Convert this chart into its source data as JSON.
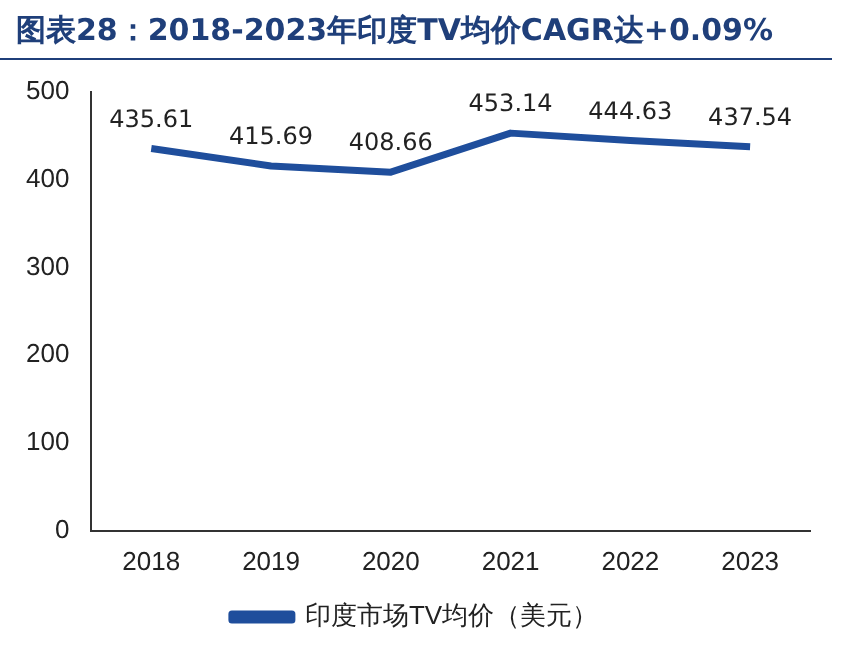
{
  "chart_data": {
    "type": "line",
    "title": "图表28：2018-2023年印度TV均价CAGR达+0.09%",
    "categories": [
      "2018",
      "2019",
      "2020",
      "2021",
      "2022",
      "2023"
    ],
    "series": [
      {
        "name": "印度市场TV均价（美元）",
        "color": "#1f4e9c",
        "values": [
          435.61,
          415.69,
          408.66,
          453.14,
          444.63,
          437.54
        ]
      }
    ],
    "ylim": [
      0,
      500
    ],
    "yticks": [
      0,
      100,
      200,
      300,
      400,
      500
    ],
    "grid": false,
    "legend": "bottom",
    "data_labels": true,
    "marker": "none",
    "line_style": "solid"
  }
}
